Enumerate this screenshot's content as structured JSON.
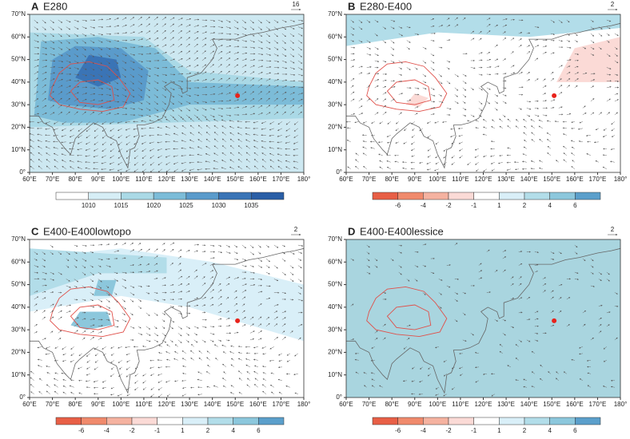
{
  "map_axes": {
    "x_labels": [
      "60°E",
      "70°E",
      "80°E",
      "90°E",
      "100°E",
      "110°E",
      "120°E",
      "130°E",
      "140°E",
      "150°E",
      "160°E",
      "170°E",
      "180°"
    ],
    "y_labels": [
      "0°",
      "10°N",
      "20°N",
      "30°N",
      "40°N",
      "50°N",
      "60°N",
      "70°N"
    ]
  },
  "panels": [
    {
      "letter": "A",
      "title": "E280",
      "vector_scale": "16",
      "colorbar": [
        1010,
        1015,
        1020,
        1025,
        1030,
        1035
      ]
    },
    {
      "letter": "B",
      "title": "E280-E400",
      "vector_scale": "2",
      "colorbar": [
        -6,
        -4,
        -2,
        -1,
        1,
        2,
        4,
        6
      ]
    },
    {
      "letter": "C",
      "title": "E400-E400lowtopo",
      "vector_scale": "2",
      "colorbar": [
        -6,
        -4,
        -2,
        -1,
        1,
        2,
        4,
        6
      ]
    },
    {
      "letter": "D",
      "title": "E400-E400lessice",
      "vector_scale": "2",
      "colorbar": [
        -6,
        -4,
        -2,
        -1,
        1,
        2,
        4,
        6
      ]
    }
  ]
}
